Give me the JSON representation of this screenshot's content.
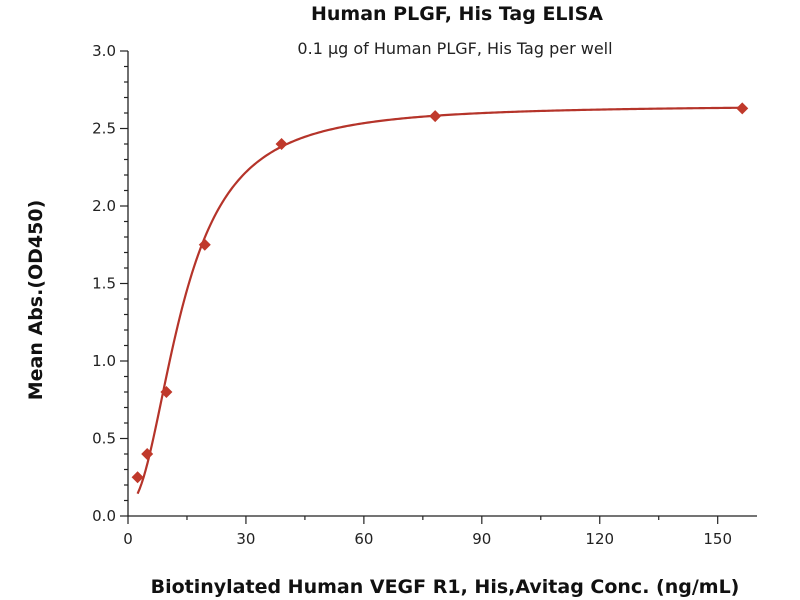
{
  "chart_data": {
    "type": "scatter",
    "title": "Human PLGF, His Tag ELISA",
    "subtitle": "0.1 μg of Human PLGF, His Tag per well",
    "xlabel": "Biotinylated Human VEGF R1, His,Avitag Conc. (ng/mL)",
    "ylabel": "Mean Abs.(OD450)",
    "xlim": [
      0,
      160
    ],
    "ylim": [
      0,
      3.0
    ],
    "x_ticks": [
      0,
      30,
      60,
      90,
      120,
      150
    ],
    "x_tick_labels": [
      "0",
      "30",
      "60",
      "90",
      "120",
      "150"
    ],
    "y_ticks": [
      0.0,
      0.5,
      1.0,
      1.5,
      2.0,
      2.5,
      3.0
    ],
    "y_tick_labels": [
      "0.0",
      "0.5",
      "1.0",
      "1.5",
      "2.0",
      "2.5",
      "3.0"
    ],
    "grid": false,
    "series": [
      {
        "marker": "diamond",
        "color": "#c0392b",
        "x": [
          2.44,
          4.88,
          9.77,
          19.53,
          39.06,
          78.13,
          156.25
        ],
        "y": [
          0.25,
          0.4,
          0.8,
          1.75,
          2.4,
          2.58,
          2.63
        ]
      }
    ],
    "fit_curve": {
      "color": "#b5342a",
      "model": "4PL",
      "bottom": 0.08,
      "top": 2.65,
      "ec50": 14.0,
      "hill": 2.1
    }
  }
}
